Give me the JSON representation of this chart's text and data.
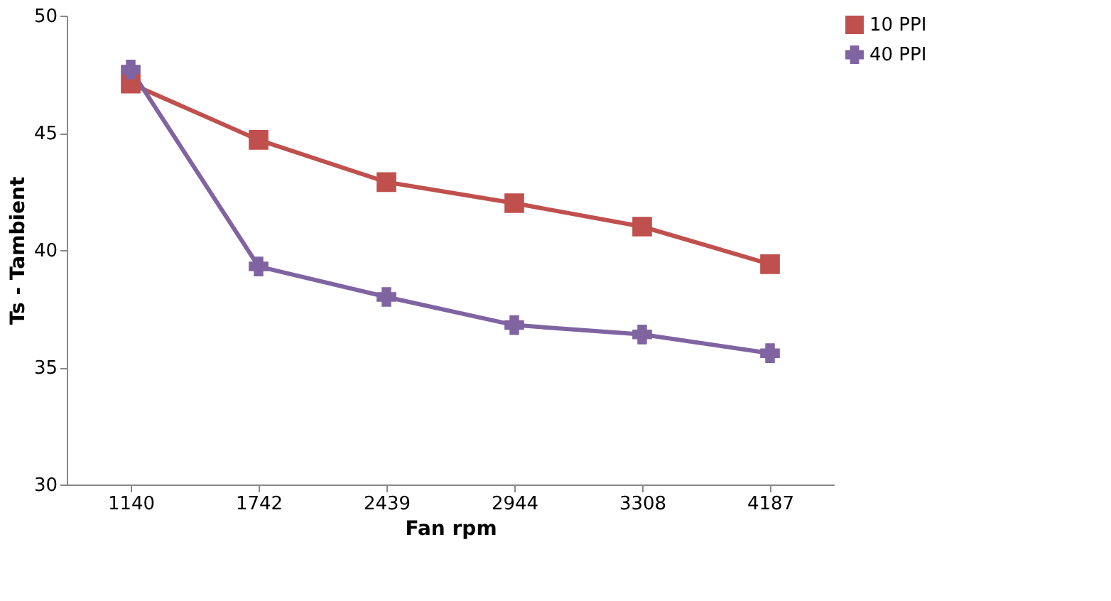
{
  "chart_data": {
    "type": "line",
    "xlabel": "Fan rpm",
    "ylabel": "Ts - Tambient",
    "categories": [
      "1140",
      "1742",
      "2439",
      "2944",
      "3308",
      "4187"
    ],
    "series": [
      {
        "name": "10 PPI",
        "color": "#c0504d",
        "marker": "square",
        "values": [
          47.1,
          44.7,
          42.9,
          42.0,
          41.0,
          39.4
        ]
      },
      {
        "name": "40 PPI",
        "color": "#8064a2",
        "marker": "cross",
        "values": [
          47.7,
          39.3,
          38.0,
          36.8,
          36.4,
          35.6
        ]
      }
    ],
    "ylim": [
      30,
      50
    ],
    "yticks": [
      30,
      35,
      40,
      45,
      50
    ],
    "grid": false,
    "legend": "right",
    "line_style": "solid"
  }
}
